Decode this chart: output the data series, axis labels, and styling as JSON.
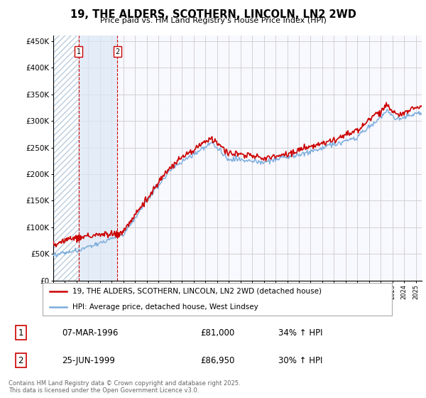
{
  "title": "19, THE ALDERS, SCOTHERN, LINCOLN, LN2 2WD",
  "subtitle": "Price paid vs. HM Land Registry's House Price Index (HPI)",
  "ylim": [
    0,
    460000
  ],
  "yticks": [
    0,
    50000,
    100000,
    150000,
    200000,
    250000,
    300000,
    350000,
    400000,
    450000
  ],
  "ytick_labels": [
    "£0",
    "£50K",
    "£100K",
    "£150K",
    "£200K",
    "£250K",
    "£300K",
    "£350K",
    "£400K",
    "£450K"
  ],
  "legend_line1": "19, THE ALDERS, SCOTHERN, LINCOLN, LN2 2WD (detached house)",
  "legend_line2": "HPI: Average price, detached house, West Lindsey",
  "sale1_label": "1",
  "sale1_date": "07-MAR-1996",
  "sale1_price": "£81,000",
  "sale1_hpi": "34% ↑ HPI",
  "sale2_label": "2",
  "sale2_date": "25-JUN-1999",
  "sale2_price": "£86,950",
  "sale2_hpi": "30% ↑ HPI",
  "footer": "Contains HM Land Registry data © Crown copyright and database right 2025.\nThis data is licensed under the Open Government Licence v3.0.",
  "red_color": "#cc0000",
  "blue_color": "#7aacdc",
  "hatch_color": "#c8d8e8",
  "grid_color": "#cccccc",
  "bg_color": "#ffffff",
  "plot_bg_color": "#f8f8ff",
  "sale1_x": 1996.17,
  "sale1_y": 81000,
  "sale2_x": 1999.48,
  "sale2_y": 86950,
  "xmin": 1994,
  "xmax": 2025.5
}
